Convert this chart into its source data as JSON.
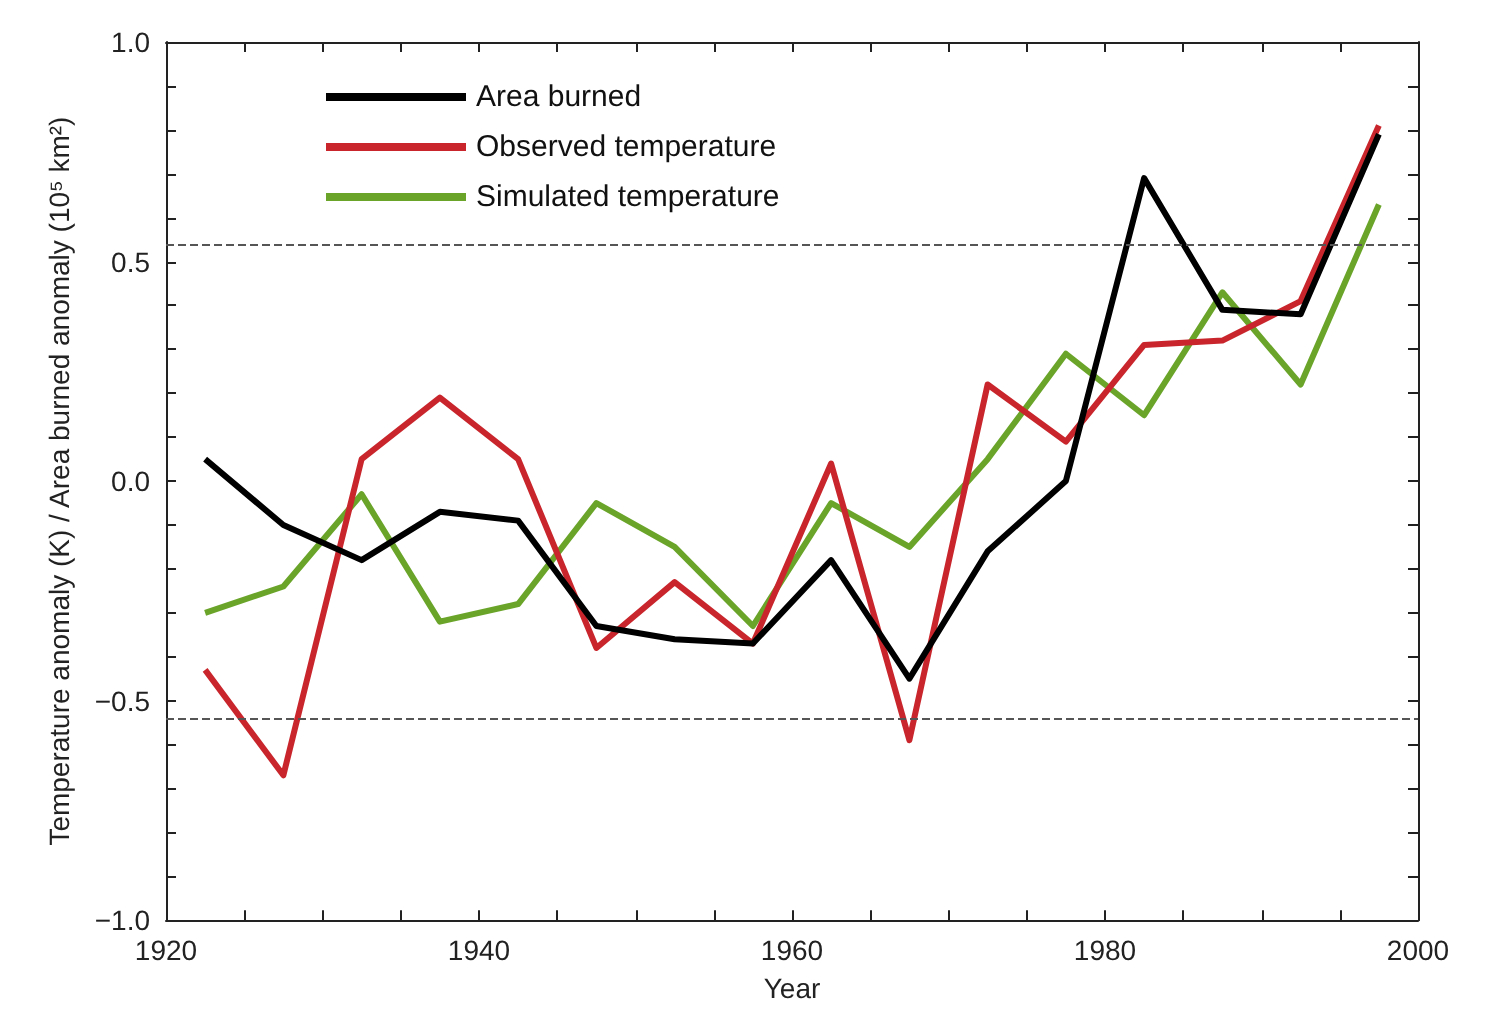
{
  "chart_data": {
    "type": "line",
    "xlabel": "Year",
    "ylabel": "Temperature anomaly (K) / Area burned anomaly (10⁵ km²)",
    "x": [
      1922.5,
      1927.5,
      1932.5,
      1937.5,
      1942.5,
      1947.5,
      1952.5,
      1957.5,
      1962.5,
      1967.5,
      1972.5,
      1977.5,
      1982.5,
      1987.5,
      1992.5,
      1997.5
    ],
    "series": [
      {
        "name": "Area burned",
        "color": "#000000",
        "values": [
          0.05,
          -0.1,
          -0.18,
          -0.07,
          -0.09,
          -0.33,
          -0.36,
          -0.37,
          -0.18,
          -0.45,
          -0.16,
          0.0,
          0.69,
          0.39,
          0.38,
          0.79
        ]
      },
      {
        "name": "Observed temperature",
        "color": "#c8262c",
        "values": [
          -0.43,
          -0.67,
          0.05,
          0.19,
          0.05,
          -0.38,
          -0.23,
          -0.37,
          0.04,
          -0.59,
          0.22,
          0.09,
          0.31,
          0.32,
          0.41,
          0.81
        ]
      },
      {
        "name": "Simulated temperature",
        "color": "#6aa52a",
        "values": [
          -0.3,
          -0.24,
          -0.03,
          -0.32,
          -0.28,
          -0.05,
          -0.15,
          -0.33,
          -0.05,
          -0.15,
          0.05,
          0.29,
          0.15,
          0.43,
          0.22,
          0.63
        ]
      }
    ],
    "xlim": [
      1920,
      2000
    ],
    "xticks": [
      1920,
      {
        "value": 1925,
        "label": null
      },
      {
        "value": 1930,
        "label": null
      },
      {
        "value": 1935,
        "label": null
      },
      1940,
      {
        "value": 1945,
        "label": null
      },
      {
        "value": 1950,
        "label": null
      },
      {
        "value": 1955,
        "label": null
      },
      1960,
      {
        "value": 1965,
        "label": null
      },
      {
        "value": 1970,
        "label": null
      },
      {
        "value": 1975,
        "label": null
      },
      1980,
      {
        "value": 1985,
        "label": null
      },
      {
        "value": 1990,
        "label": null
      },
      {
        "value": 1995,
        "label": null
      },
      2000
    ],
    "ylim": [
      -1.0,
      1.0
    ],
    "yticks": [
      {
        "value": -1.0,
        "label": "−1.0"
      },
      {
        "value": -0.9,
        "label": null
      },
      {
        "value": -0.8,
        "label": null
      },
      {
        "value": -0.7,
        "label": null
      },
      {
        "value": -0.6,
        "label": null
      },
      {
        "value": -0.5,
        "label": "−0.5"
      },
      {
        "value": -0.4,
        "label": null
      },
      {
        "value": -0.3,
        "label": null
      },
      {
        "value": -0.2,
        "label": null
      },
      {
        "value": -0.1,
        "label": null
      },
      {
        "value": 0.0,
        "label": "0.0"
      },
      {
        "value": 0.1,
        "label": null
      },
      {
        "value": 0.2,
        "label": null
      },
      {
        "value": 0.3,
        "label": null
      },
      {
        "value": 0.4,
        "label": null
      },
      {
        "value": 0.5,
        "label": "0.5"
      },
      {
        "value": 0.6,
        "label": null
      },
      {
        "value": 0.7,
        "label": null
      },
      {
        "value": 0.8,
        "label": null
      },
      {
        "value": 0.9,
        "label": null
      },
      {
        "value": 1.0,
        "label": "1.0"
      }
    ],
    "ref_lines": [
      {
        "axis": "y",
        "value": 0.54,
        "color": "#555555",
        "line_style": "dashed"
      },
      {
        "axis": "y",
        "value": -0.54,
        "color": "#555555",
        "line_style": "dashed"
      }
    ],
    "legend": "top left",
    "grid": false,
    "marker": "none",
    "line_style": "solid"
  }
}
